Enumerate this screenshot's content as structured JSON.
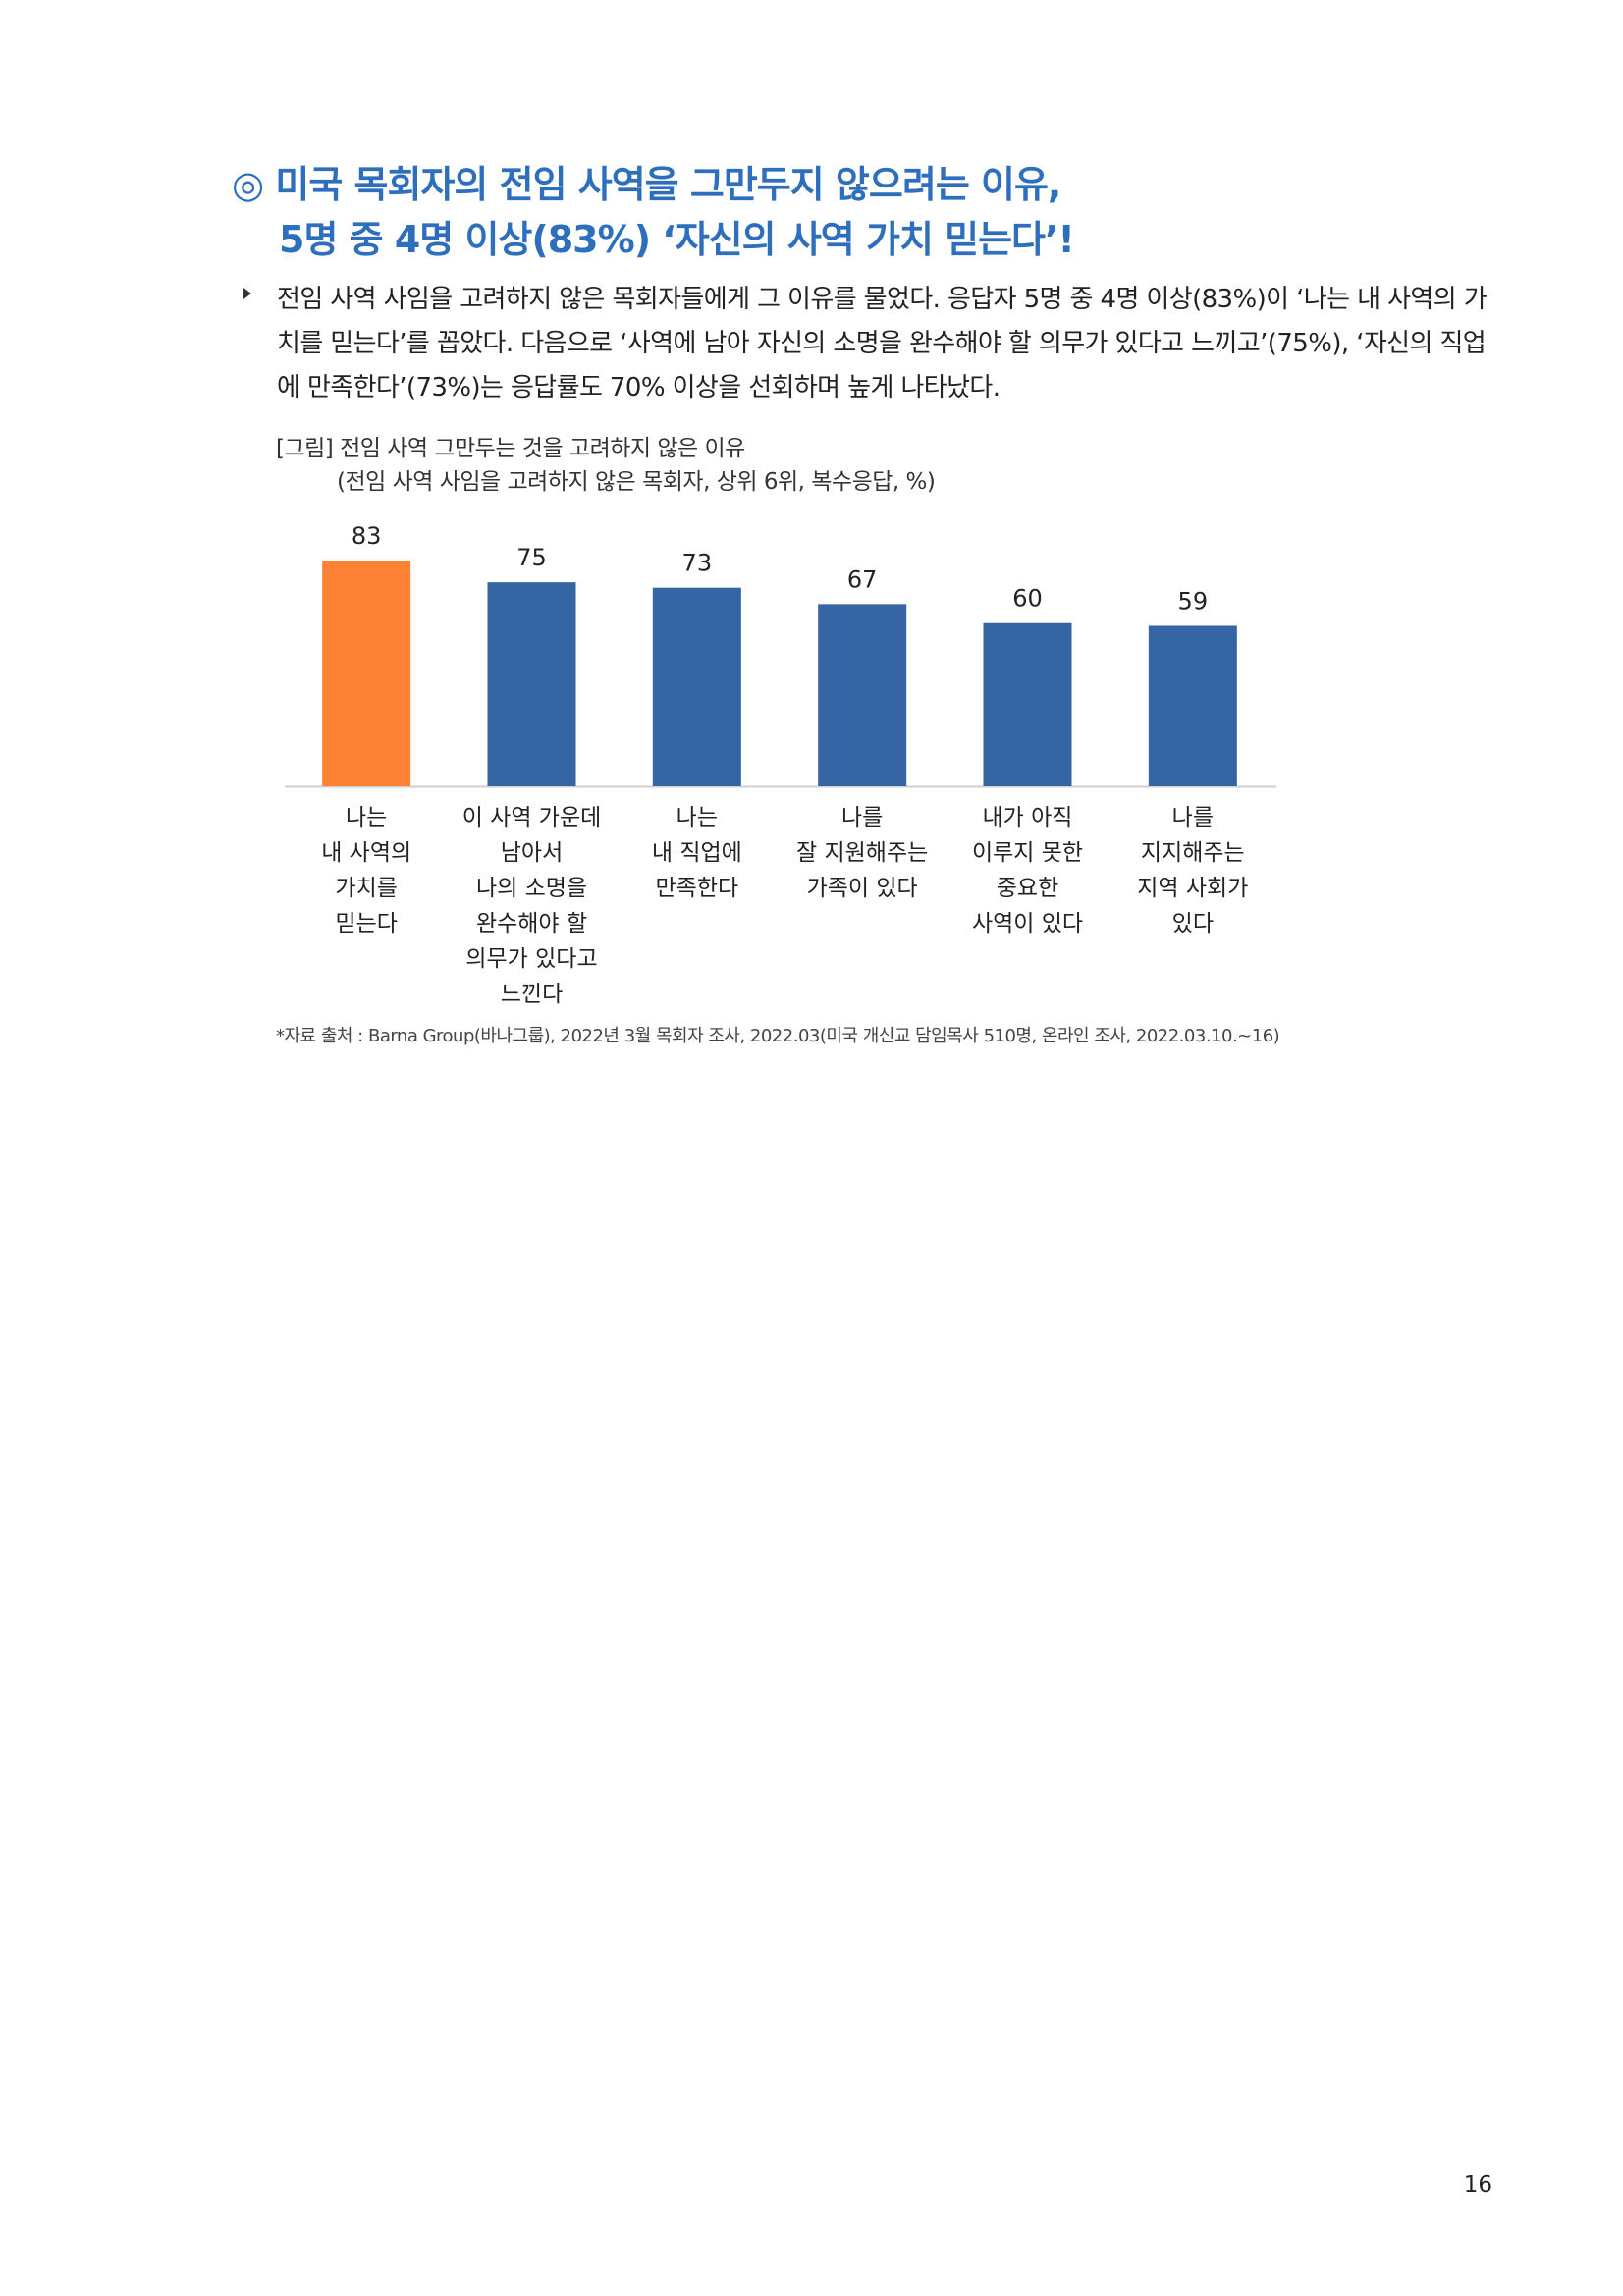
{
  "heading": {
    "line1": "◎ 미국 목회자의 전임 사역을 그만두지 않으려는 이유,",
    "line2": "5명 중 4명 이상(83%) ‘자신의 사역 가치 믿는다’!"
  },
  "body": {
    "text": "전임 사역 사임을 고려하지 않은 목회자들에게 그 이유를 물었다. 응답자 5명 중 4명 이상(83%)이 ‘나는 내 사역의 가치를 믿는다’를 꼽았다. 다음으로 ‘사역에 남아 자신의 소명을 완수해야 할 의무가 있다고 느끼고’(75%), ‘자신의 직업에 만족한다’(73%)는 응답률도 70% 이상을 선회하며 높게 나타났다."
  },
  "figure": {
    "title": "[그림] 전임 사역 그만두는 것을 고려하지 않은 이유",
    "subtitle": "(전임 사역 사임을 고려하지 않은 목회자, 상위 6위, 복수응답, %)"
  },
  "chart_data": {
    "type": "bar",
    "categories": [
      [
        "나는",
        "내 사역의",
        "가치를",
        "믿는다"
      ],
      [
        "이 사역 가운데",
        "남아서",
        "나의 소명을",
        "완수해야 할",
        "의무가 있다고",
        "느낀다"
      ],
      [
        "나는",
        "내 직업에",
        "만족한다"
      ],
      [
        "나를",
        "잘 지원해주는",
        "가족이 있다"
      ],
      [
        "내가 아직",
        "이루지 못한",
        "중요한",
        "사역이 있다"
      ],
      [
        "나를",
        "지지해주는",
        "지역 사회가",
        "있다"
      ]
    ],
    "values": [
      83,
      75,
      73,
      67,
      60,
      59
    ],
    "ylim": [
      0,
      100
    ],
    "colors": {
      "highlight": "#fe8233",
      "default": "#3565a2",
      "axis": "#cfcfcf"
    },
    "highlight_index": 0,
    "grid": false,
    "data_labels": true
  },
  "source": "*자료 출처 : Barna Group(바나그룹), 2022년 3월 목회자 조사, 2022.03(미국 개신교 담임목사 510명, 온라인 조사, 2022.03.10.~16)",
  "page_number": "16"
}
